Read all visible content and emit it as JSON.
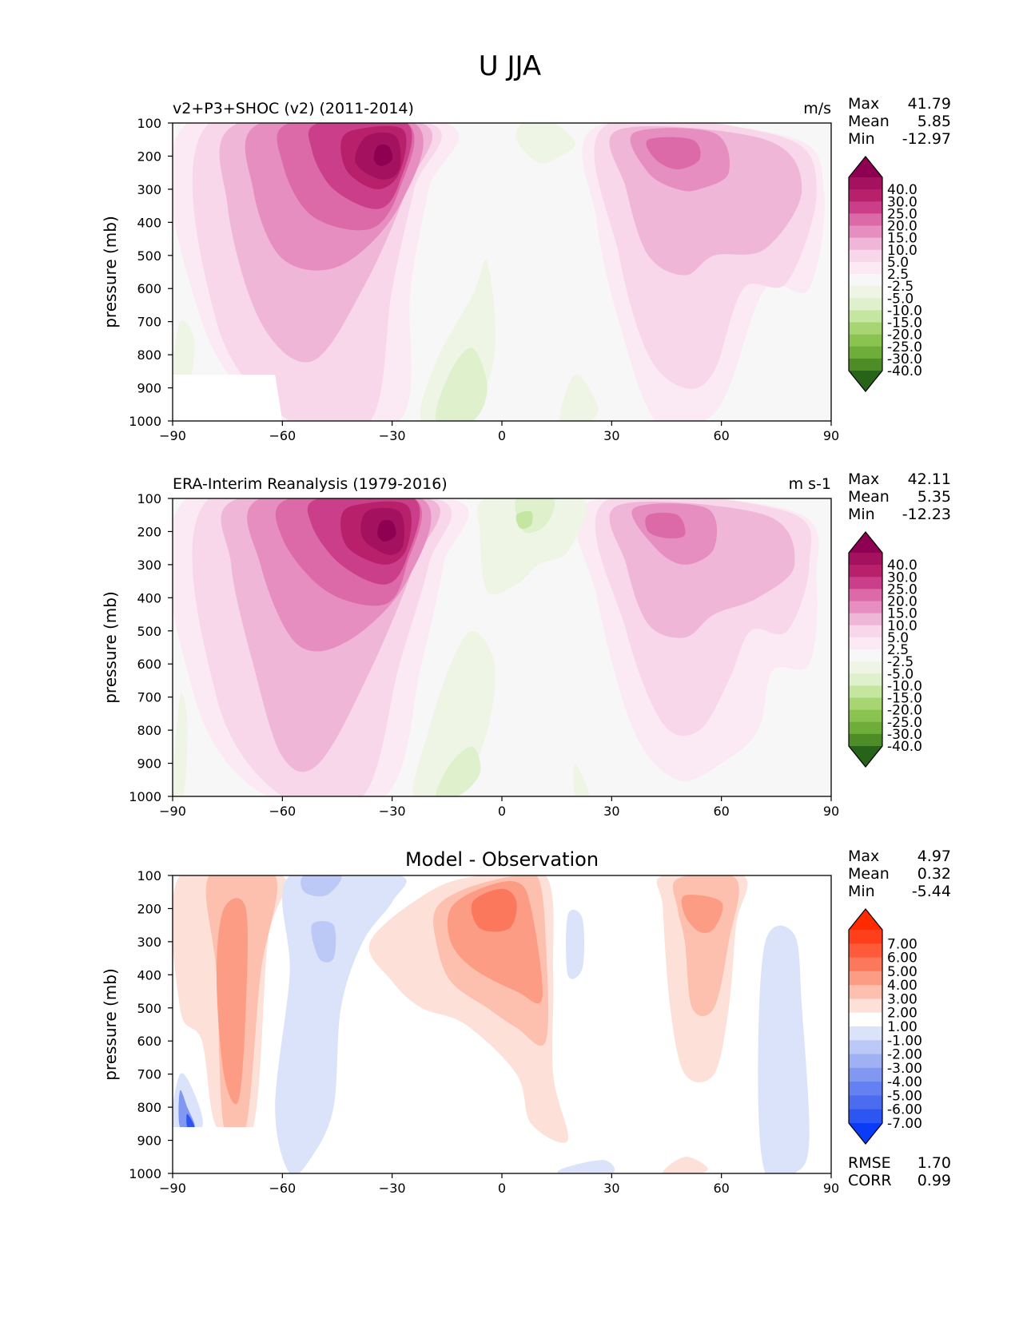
{
  "figure_title": "U JJA",
  "chart_data": [
    {
      "type": "contour",
      "id": "test",
      "title_left": "v2+P3+SHOC (v2) (2011-2014)",
      "title_right": "m/s",
      "title_center": "",
      "xlabel": "",
      "ylabel": "pressure (mb)",
      "xlim": [
        -90,
        90
      ],
      "ylim": [
        1000,
        100
      ],
      "xticks": [
        -90,
        -60,
        -30,
        0,
        30,
        60,
        90
      ],
      "xtick_labels": [
        "−90",
        "−60",
        "−30",
        "0",
        "30",
        "60",
        "90"
      ],
      "yticks": [
        100,
        200,
        300,
        400,
        500,
        600,
        700,
        800,
        900,
        1000
      ],
      "stats": [
        {
          "label": "Max",
          "value": "41.79"
        },
        {
          "label": "Mean",
          "value": "5.85"
        },
        {
          "label": "Min",
          "value": "-12.97"
        }
      ],
      "colorbar": {
        "colors": [
          "#8e0152",
          "#a3115f",
          "#b8206c",
          "#cb3f8a",
          "#dd6aa8",
          "#e78ec0",
          "#f0b6d8",
          "#f8d7ea",
          "#fbeaf3",
          "#f7f7f7",
          "#eef5e5",
          "#dff0cd",
          "#c4e6a0",
          "#a7d572",
          "#8bc350",
          "#6ead3a",
          "#4d8c26",
          "#276419"
        ],
        "labels": [
          "40.0",
          "30.0",
          "25.0",
          "20.0",
          "15.0",
          "10.0",
          "5.0",
          "2.5",
          "-2.5",
          "-5.0",
          "-10.0",
          "-15.0",
          "-20.0",
          "-25.0",
          "-30.0",
          "-40.0"
        ]
      },
      "features": [
        {
          "lat": -35,
          "p": 200,
          "value": 41.79
        },
        {
          "lat": 45,
          "p": 200,
          "value": 22
        },
        {
          "lat": 10,
          "p": 150,
          "value": -8
        }
      ]
    },
    {
      "type": "contour",
      "id": "ref",
      "title_left": "ERA-Interim Reanalysis (1979-2016)",
      "title_right": "m s-1",
      "title_center": "",
      "xlabel": "",
      "ylabel": "pressure (mb)",
      "xlim": [
        -90,
        90
      ],
      "ylim": [
        1000,
        100
      ],
      "xticks": [
        -90,
        -60,
        -30,
        0,
        30,
        60,
        90
      ],
      "xtick_labels": [
        "−90",
        "−60",
        "−30",
        "0",
        "30",
        "60",
        "90"
      ],
      "yticks": [
        100,
        200,
        300,
        400,
        500,
        600,
        700,
        800,
        900,
        1000
      ],
      "stats": [
        {
          "label": "Max",
          "value": "42.11"
        },
        {
          "label": "Mean",
          "value": "5.35"
        },
        {
          "label": "Min",
          "value": "-12.23"
        }
      ],
      "colorbar": {
        "colors": [
          "#8e0152",
          "#a3115f",
          "#b8206c",
          "#cb3f8a",
          "#dd6aa8",
          "#e78ec0",
          "#f0b6d8",
          "#f8d7ea",
          "#fbeaf3",
          "#f7f7f7",
          "#eef5e5",
          "#dff0cd",
          "#c4e6a0",
          "#a7d572",
          "#8bc350",
          "#6ead3a",
          "#4d8c26",
          "#276419"
        ],
        "labels": [
          "40.0",
          "30.0",
          "25.0",
          "20.0",
          "15.0",
          "10.0",
          "5.0",
          "2.5",
          "-2.5",
          "-5.0",
          "-10.0",
          "-15.0",
          "-20.0",
          "-25.0",
          "-30.0",
          "-40.0"
        ]
      },
      "features": [
        {
          "lat": -35,
          "p": 200,
          "value": 42.11
        },
        {
          "lat": 45,
          "p": 200,
          "value": 22
        },
        {
          "lat": 5,
          "p": 150,
          "value": -12.23
        }
      ]
    },
    {
      "type": "contour",
      "id": "diff",
      "title_left": "",
      "title_right": "",
      "title_center": "Model - Observation",
      "xlabel": "",
      "ylabel": "pressure (mb)",
      "xlim": [
        -90,
        90
      ],
      "ylim": [
        1000,
        100
      ],
      "xticks": [
        -90,
        -60,
        -30,
        0,
        30,
        60,
        90
      ],
      "xtick_labels": [
        "−90",
        "−60",
        "−30",
        "0",
        "30",
        "60",
        "90"
      ],
      "yticks": [
        100,
        200,
        300,
        400,
        500,
        600,
        700,
        800,
        900,
        1000
      ],
      "stats": [
        {
          "label": "Max",
          "value": "4.97"
        },
        {
          "label": "Mean",
          "value": "0.32"
        },
        {
          "label": "Min",
          "value": "-5.44"
        }
      ],
      "extra_stats": [
        {
          "label": "RMSE",
          "value": "1.70"
        },
        {
          "label": "CORR",
          "value": "0.99"
        }
      ],
      "colorbar": {
        "colors": [
          "#ff2a00",
          "#ff3f1a",
          "#ff5a3a",
          "#fc785c",
          "#fd9c84",
          "#fdbfae",
          "#fde1d8",
          "#ffffff",
          "#dbe3fa",
          "#bcc9f7",
          "#9fb1f4",
          "#8198f2",
          "#6580f0",
          "#4c6cf0",
          "#2c55f2",
          "#0a3cf7"
        ],
        "labels": [
          "7.00",
          "6.00",
          "5.00",
          "4.00",
          "3.00",
          "2.00",
          "1.00",
          "-1.00",
          "-2.00",
          "-3.00",
          "-4.00",
          "-5.00",
          "-6.00",
          "-7.00"
        ]
      },
      "features": [
        {
          "lat": -70,
          "p": 450,
          "value": 3.5
        },
        {
          "lat": 0,
          "p": 300,
          "value": 4.97
        },
        {
          "lat": 55,
          "p": 250,
          "value": 4
        },
        {
          "lat": -50,
          "p": 300,
          "value": -2.5
        },
        {
          "lat": -85,
          "p": 830,
          "value": -5.44
        }
      ]
    }
  ]
}
